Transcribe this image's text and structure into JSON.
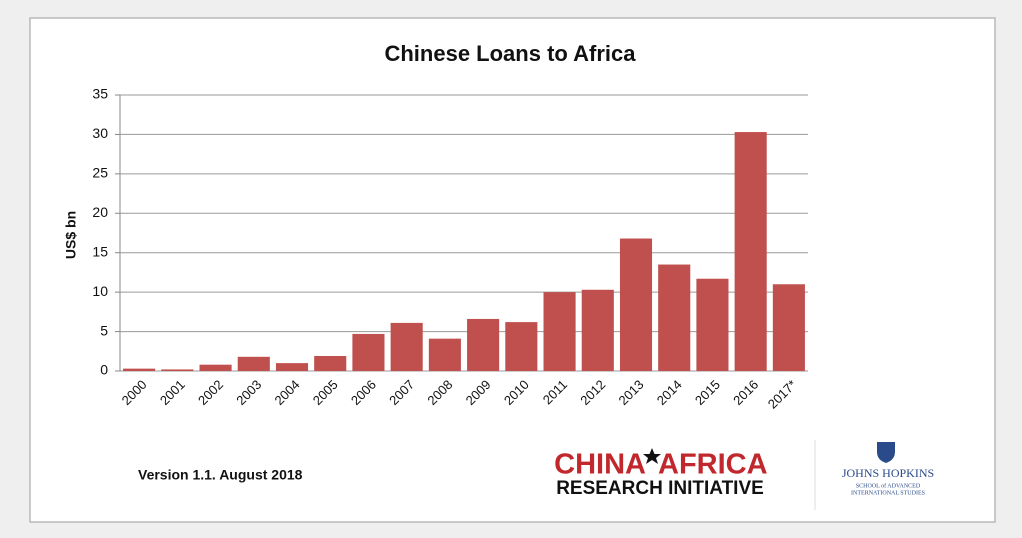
{
  "chart_data": {
    "type": "bar",
    "title": "Chinese Loans to Africa",
    "y_label": "US$ bn",
    "categories": [
      "2000",
      "2001",
      "2002",
      "2003",
      "2004",
      "2005",
      "2006",
      "2007",
      "2008",
      "2009",
      "2010",
      "2011",
      "2012",
      "2013",
      "2014",
      "2015",
      "2016",
      "2017*"
    ],
    "values": [
      0.3,
      0.2,
      0.8,
      1.8,
      1.0,
      1.9,
      4.7,
      6.1,
      4.1,
      6.6,
      6.2,
      10.0,
      10.3,
      16.8,
      13.5,
      11.7,
      30.3,
      11.0
    ],
    "color": "#c0504d",
    "ylim": [
      0,
      35
    ],
    "yticks": [
      0,
      5,
      10,
      15,
      20,
      25,
      30,
      35
    ],
    "grid": true
  },
  "footer": {
    "version": "Version 1.1. August 2018",
    "logo_left": "CHINA",
    "logo_right": "AFRICA",
    "logo_sub": "RESEARCH INITIATIVE",
    "jh_title": "JOHNS HOPKINS",
    "jh_sub1": "SCHOOL of ADVANCED",
    "jh_sub2": "INTERNATIONAL STUDIES"
  }
}
